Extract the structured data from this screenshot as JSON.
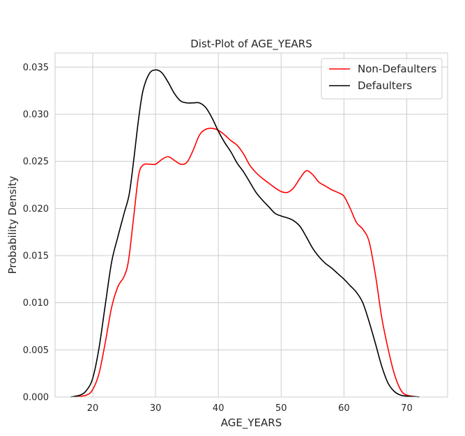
{
  "chart_data": {
    "type": "line",
    "title": "Dist-Plot of AGE_YEARS",
    "xlabel": "AGE_YEARS",
    "ylabel": "Probability Density",
    "xlim": [
      14,
      76.5
    ],
    "ylim": [
      0,
      0.0365
    ],
    "xticks": [
      20,
      30,
      40,
      50,
      60,
      70
    ],
    "yticks": [
      0.0,
      0.005,
      0.01,
      0.015,
      0.02,
      0.025,
      0.03,
      0.035
    ],
    "ytick_labels": [
      "0.000",
      "0.005",
      "0.010",
      "0.015",
      "0.020",
      "0.025",
      "0.030",
      "0.035"
    ],
    "grid": true,
    "legend_position": "top-right",
    "series": [
      {
        "name": "Non-Defaulters",
        "color": "#ff0000",
        "points": [
          [
            17.0,
            0.0
          ],
          [
            19.0,
            0.0002
          ],
          [
            20.0,
            0.0008
          ],
          [
            21.0,
            0.0025
          ],
          [
            22.0,
            0.0058
          ],
          [
            23.0,
            0.0095
          ],
          [
            24.0,
            0.0117
          ],
          [
            25.0,
            0.0128
          ],
          [
            25.7,
            0.0145
          ],
          [
            26.5,
            0.019
          ],
          [
            27.3,
            0.0235
          ],
          [
            28.0,
            0.0246
          ],
          [
            29.0,
            0.0247
          ],
          [
            30.0,
            0.0247
          ],
          [
            31.0,
            0.0252
          ],
          [
            32.0,
            0.0255
          ],
          [
            33.0,
            0.0251
          ],
          [
            34.0,
            0.0247
          ],
          [
            35.0,
            0.0249
          ],
          [
            36.0,
            0.0262
          ],
          [
            37.0,
            0.0278
          ],
          [
            38.0,
            0.0284
          ],
          [
            39.0,
            0.0285
          ],
          [
            40.0,
            0.0283
          ],
          [
            41.0,
            0.0278
          ],
          [
            42.0,
            0.0272
          ],
          [
            43.0,
            0.0267
          ],
          [
            44.0,
            0.0258
          ],
          [
            45.0,
            0.0246
          ],
          [
            46.0,
            0.0238
          ],
          [
            47.0,
            0.0232
          ],
          [
            48.0,
            0.0227
          ],
          [
            49.0,
            0.0222
          ],
          [
            50.0,
            0.0218
          ],
          [
            51.0,
            0.0217
          ],
          [
            52.0,
            0.0222
          ],
          [
            53.0,
            0.0232
          ],
          [
            54.0,
            0.024
          ],
          [
            55.0,
            0.0236
          ],
          [
            56.0,
            0.0228
          ],
          [
            57.0,
            0.0224
          ],
          [
            58.0,
            0.022
          ],
          [
            59.0,
            0.0217
          ],
          [
            60.0,
            0.0213
          ],
          [
            61.0,
            0.02
          ],
          [
            62.0,
            0.0185
          ],
          [
            63.0,
            0.0178
          ],
          [
            64.0,
            0.0165
          ],
          [
            65.0,
            0.013
          ],
          [
            66.0,
            0.0085
          ],
          [
            67.0,
            0.0052
          ],
          [
            68.0,
            0.0025
          ],
          [
            69.0,
            0.0008
          ],
          [
            70.0,
            0.0002
          ],
          [
            72.0,
            0.0
          ]
        ]
      },
      {
        "name": "Defaulters",
        "color": "#000000",
        "points": [
          [
            16.5,
            0.0
          ],
          [
            18.0,
            0.0002
          ],
          [
            19.0,
            0.0007
          ],
          [
            20.0,
            0.002
          ],
          [
            21.0,
            0.0052
          ],
          [
            22.0,
            0.0098
          ],
          [
            23.0,
            0.0143
          ],
          [
            24.0,
            0.017
          ],
          [
            25.0,
            0.0195
          ],
          [
            25.8,
            0.0215
          ],
          [
            26.5,
            0.025
          ],
          [
            27.3,
            0.0295
          ],
          [
            28.0,
            0.0325
          ],
          [
            29.0,
            0.0343
          ],
          [
            30.0,
            0.0347
          ],
          [
            31.0,
            0.0344
          ],
          [
            32.0,
            0.0334
          ],
          [
            33.0,
            0.0322
          ],
          [
            34.0,
            0.0314
          ],
          [
            35.0,
            0.0312
          ],
          [
            36.0,
            0.0312
          ],
          [
            37.0,
            0.0312
          ],
          [
            38.0,
            0.0307
          ],
          [
            39.0,
            0.0296
          ],
          [
            40.0,
            0.0282
          ],
          [
            41.0,
            0.027
          ],
          [
            42.0,
            0.026
          ],
          [
            43.0,
            0.0248
          ],
          [
            44.0,
            0.0239
          ],
          [
            45.0,
            0.0228
          ],
          [
            46.0,
            0.0217
          ],
          [
            47.0,
            0.0209
          ],
          [
            48.0,
            0.0202
          ],
          [
            49.0,
            0.0195
          ],
          [
            50.0,
            0.0192
          ],
          [
            51.0,
            0.019
          ],
          [
            52.0,
            0.0187
          ],
          [
            53.0,
            0.0181
          ],
          [
            54.0,
            0.017
          ],
          [
            55.0,
            0.0158
          ],
          [
            56.0,
            0.0149
          ],
          [
            57.0,
            0.0142
          ],
          [
            58.0,
            0.0137
          ],
          [
            59.0,
            0.0131
          ],
          [
            60.0,
            0.0125
          ],
          [
            61.0,
            0.0118
          ],
          [
            62.0,
            0.0111
          ],
          [
            63.0,
            0.01
          ],
          [
            64.0,
            0.008
          ],
          [
            65.0,
            0.0057
          ],
          [
            66.0,
            0.0033
          ],
          [
            67.0,
            0.0015
          ],
          [
            68.0,
            0.0006
          ],
          [
            69.0,
            0.0002
          ],
          [
            70.0,
            0.0001
          ],
          [
            72.0,
            0.0
          ]
        ]
      }
    ]
  }
}
